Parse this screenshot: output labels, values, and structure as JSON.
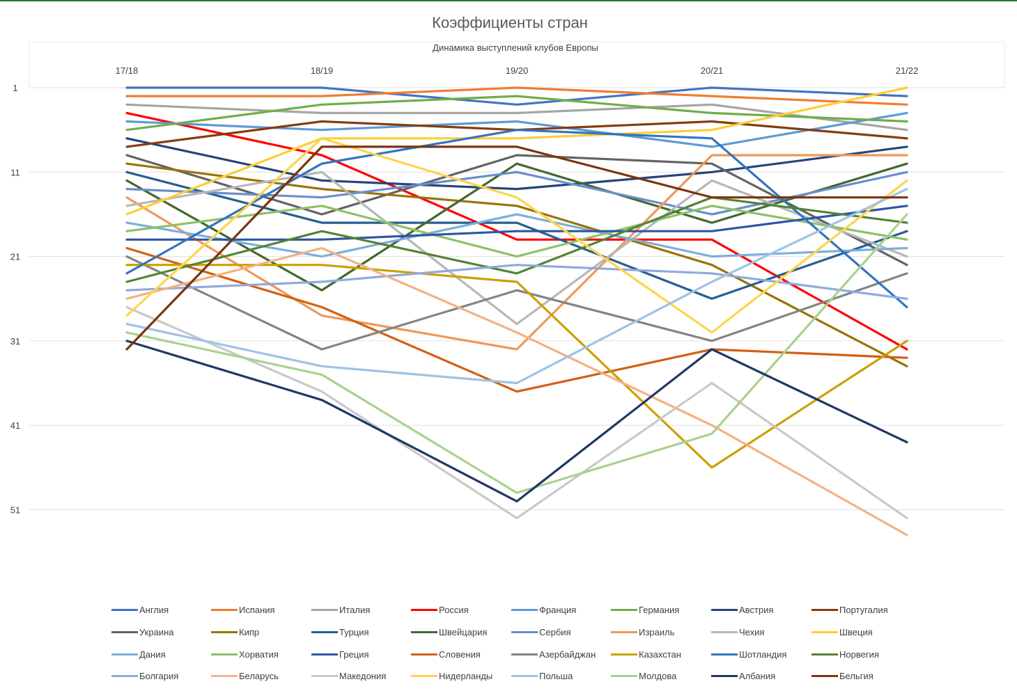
{
  "chart_data": {
    "type": "line",
    "title": "Коэффициенты стран",
    "subtitle": "Динамика выступлений клубов Европы",
    "categories": [
      "17/18",
      "18/19",
      "19/20",
      "20/21",
      "21/22"
    ],
    "y_ticks": [
      "1",
      "11",
      "21",
      "31",
      "41",
      "51"
    ],
    "ylim": [
      1,
      55
    ],
    "y_reversed": true,
    "grid": true,
    "legend_position": "bottom",
    "series": [
      {
        "name": "Англия",
        "color": "#4472C4",
        "values": [
          1,
          1,
          3,
          1,
          2
        ]
      },
      {
        "name": "Испания",
        "color": "#ED7D31",
        "values": [
          2,
          2,
          1,
          2,
          3
        ]
      },
      {
        "name": "Италия",
        "color": "#A5A5A5",
        "values": [
          3,
          4,
          4,
          3,
          6
        ]
      },
      {
        "name": "Россия",
        "color": "#FF0000",
        "values": [
          4,
          9,
          19,
          19,
          32
        ]
      },
      {
        "name": "Франция",
        "color": "#5B9BD5",
        "values": [
          5,
          6,
          5,
          8,
          4
        ]
      },
      {
        "name": "Германия",
        "color": "#70AD47",
        "values": [
          6,
          3,
          2,
          4,
          5
        ]
      },
      {
        "name": "Австрия",
        "color": "#264478",
        "values": [
          7,
          12,
          13,
          11,
          8
        ]
      },
      {
        "name": "Португалия",
        "color": "#843C0C",
        "values": [
          8,
          5,
          6,
          5,
          7
        ]
      },
      {
        "name": "Украина",
        "color": "#636363",
        "values": [
          9,
          16,
          9,
          10,
          22
        ]
      },
      {
        "name": "Кипр",
        "color": "#997300",
        "values": [
          10,
          13,
          15,
          22,
          34
        ]
      },
      {
        "name": "Турция",
        "color": "#255E91",
        "values": [
          11,
          17,
          17,
          26,
          18
        ]
      },
      {
        "name": "Швейцария",
        "color": "#43682B",
        "values": [
          12,
          25,
          10,
          17,
          10
        ]
      },
      {
        "name": "Сербия",
        "color": "#698ED0",
        "values": [
          13,
          14,
          11,
          16,
          11
        ]
      },
      {
        "name": "Израиль",
        "color": "#F1975A",
        "values": [
          14,
          28,
          32,
          9,
          9
        ]
      },
      {
        "name": "Чехия",
        "color": "#B7B7B7",
        "values": [
          15,
          11,
          29,
          12,
          21
        ]
      },
      {
        "name": "Швеция",
        "color": "#FFCD33",
        "values": [
          16,
          7,
          7,
          6,
          1
        ]
      },
      {
        "name": "Дания",
        "color": "#7CAFDD",
        "values": [
          17,
          21,
          16,
          21,
          20
        ]
      },
      {
        "name": "Хорватия",
        "color": "#8CC168",
        "values": [
          18,
          15,
          21,
          15,
          19
        ]
      },
      {
        "name": "Греция",
        "color": "#2F55A4",
        "values": [
          19,
          19,
          18,
          18,
          15
        ]
      },
      {
        "name": "Словения",
        "color": "#D26012",
        "values": [
          20,
          27,
          37,
          32,
          33
        ]
      },
      {
        "name": "Азербайджан",
        "color": "#848484",
        "values": [
          21,
          32,
          25,
          31,
          23
        ]
      },
      {
        "name": "Казахстан",
        "color": "#CCA000",
        "values": [
          22,
          22,
          24,
          46,
          31
        ]
      },
      {
        "name": "Шотландия",
        "color": "#3274C0",
        "values": [
          23,
          10,
          6,
          7,
          27
        ]
      },
      {
        "name": "Норвегия",
        "color": "#548235",
        "values": [
          24,
          18,
          23,
          14,
          17
        ]
      },
      {
        "name": "Болгария",
        "color": "#8FAADC",
        "values": [
          25,
          24,
          22,
          23,
          26
        ]
      },
      {
        "name": "Беларусь",
        "color": "#F4B183",
        "values": [
          26,
          20,
          30,
          41,
          54
        ]
      },
      {
        "name": "Македония",
        "color": "#C9C9C9",
        "values": [
          27,
          37,
          52,
          36,
          52
        ]
      },
      {
        "name": "Нидерланды",
        "color": "#FFD34D",
        "values": [
          28,
          7,
          14,
          30,
          12
        ]
      },
      {
        "name": "Польша",
        "color": "#9DC3E6",
        "values": [
          29,
          34,
          36,
          24,
          13
        ]
      },
      {
        "name": "Молдова",
        "color": "#A9D18E",
        "values": [
          30,
          35,
          49,
          42,
          16
        ]
      },
      {
        "name": "Албания",
        "color": "#1F3864",
        "values": [
          31,
          38,
          50,
          32,
          43
        ]
      },
      {
        "name": "Бельгия",
        "color": "#7B3410",
        "values": [
          32,
          8,
          8,
          14,
          14
        ]
      }
    ]
  }
}
